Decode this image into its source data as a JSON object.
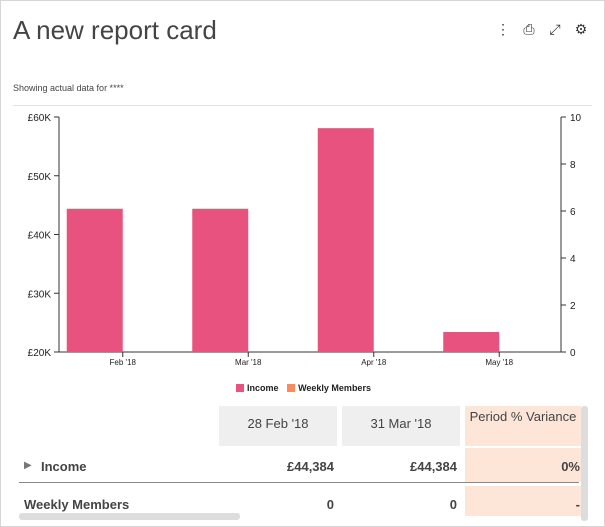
{
  "card": {
    "title": "A new report card",
    "subtitle": "Showing actual data for ****",
    "icons": [
      "more-vertical-icon",
      "print-icon",
      "expand-icon",
      "gear-icon"
    ]
  },
  "chart_data": {
    "type": "bar",
    "categories": [
      "Feb '18",
      "Mar '18",
      "Apr '18",
      "May '18"
    ],
    "series": [
      {
        "name": "Income",
        "color": "#e8527e",
        "axis": "left",
        "values": [
          44384,
          44384,
          58100,
          23400
        ]
      },
      {
        "name": "Weekly Members",
        "color": "#f98c5e",
        "axis": "right",
        "values": [
          0,
          0,
          0,
          0
        ]
      }
    ],
    "y_left": {
      "ticks": [
        "£20K",
        "£30K",
        "£40K",
        "£50K",
        "£60K"
      ],
      "range": [
        20000,
        60000
      ]
    },
    "y_right": {
      "ticks": [
        "0",
        "2",
        "4",
        "6",
        "8",
        "10"
      ],
      "range": [
        0,
        10
      ]
    },
    "legend_position": "bottom",
    "grid": false
  },
  "table": {
    "headers": [
      "28 Feb '18",
      "31 Mar '18",
      "Period % Variance"
    ],
    "rows": [
      {
        "label": "Income",
        "values": [
          "£44,384",
          "£44,384",
          "0%"
        ],
        "expandable": true
      },
      {
        "label": "Weekly Members",
        "values": [
          "0",
          "0",
          "-"
        ],
        "expandable": false
      }
    ]
  }
}
